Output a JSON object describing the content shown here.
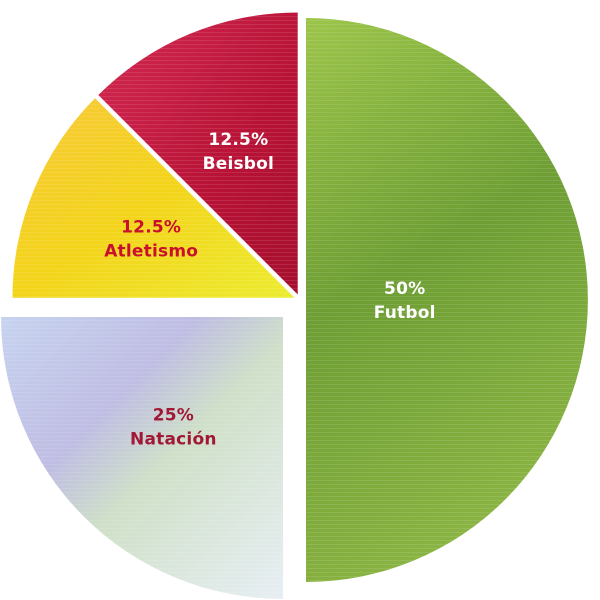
{
  "chart_data": {
    "type": "pie",
    "title": "",
    "slices": [
      {
        "label": "Futbol",
        "value": 50,
        "display": "50%",
        "color": "#7faa3a",
        "label_color": "#ffffff"
      },
      {
        "label": "Natación",
        "value": 25,
        "display": "25%",
        "color": "#c9cbe4",
        "label_color": "#a01836"
      },
      {
        "label": "Atletismo",
        "value": 12.5,
        "display": "12.5%",
        "color": "#f2c81c",
        "label_color": "#c8102e"
      },
      {
        "label": "Beisbol",
        "value": 12.5,
        "display": "12.5%",
        "color": "#c41a3e",
        "label_color": "#ffffff"
      }
    ],
    "start": "top, clockwise",
    "exploded": "Natación",
    "legend": "none"
  }
}
